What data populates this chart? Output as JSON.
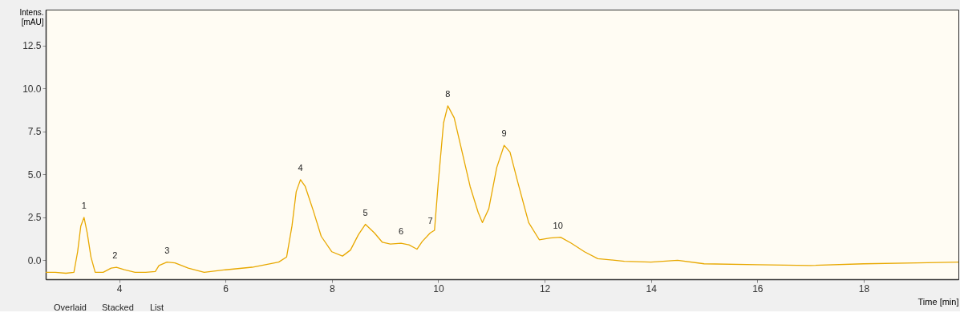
{
  "chart_data": {
    "type": "line",
    "xlabel": "Time [min]",
    "ylabel": "Intens. [mAU]",
    "x": [
      2.62,
      2.8,
      3.0,
      3.15,
      3.22,
      3.28,
      3.34,
      3.4,
      3.47,
      3.55,
      3.7,
      3.85,
      3.95,
      4.1,
      4.3,
      4.5,
      4.68,
      4.75,
      4.9,
      5.05,
      5.3,
      5.6,
      6.0,
      6.5,
      7.0,
      7.15,
      7.25,
      7.33,
      7.41,
      7.5,
      7.65,
      7.8,
      8.0,
      8.2,
      8.35,
      8.5,
      8.63,
      8.8,
      8.95,
      9.1,
      9.3,
      9.45,
      9.6,
      9.7,
      9.85,
      9.93,
      10.0,
      10.1,
      10.18,
      10.3,
      10.45,
      10.6,
      10.75,
      10.83,
      10.95,
      11.1,
      11.24,
      11.35,
      11.5,
      11.7,
      11.9,
      12.1,
      12.3,
      12.5,
      12.75,
      13.0,
      13.5,
      14.0,
      14.5,
      15.0,
      16.0,
      17.0,
      18.0,
      19.0,
      19.78
    ],
    "series": [
      {
        "color": "#e8a800",
        "values": [
          -0.7,
          -0.7,
          -0.75,
          -0.7,
          0.5,
          2.0,
          2.5,
          1.6,
          0.2,
          -0.7,
          -0.7,
          -0.45,
          -0.4,
          -0.55,
          -0.7,
          -0.7,
          -0.65,
          -0.3,
          -0.1,
          -0.15,
          -0.45,
          -0.7,
          -0.55,
          -0.4,
          -0.1,
          0.2,
          2.0,
          4.0,
          4.7,
          4.3,
          2.9,
          1.4,
          0.5,
          0.25,
          0.6,
          1.5,
          2.1,
          1.6,
          1.05,
          0.95,
          1.0,
          0.9,
          0.65,
          1.1,
          1.6,
          1.75,
          4.5,
          8.0,
          9.0,
          8.3,
          6.3,
          4.3,
          2.8,
          2.2,
          3.0,
          5.4,
          6.7,
          6.3,
          4.5,
          2.2,
          1.2,
          1.3,
          1.35,
          1.0,
          0.5,
          0.1,
          -0.05,
          -0.1,
          0.0,
          -0.2,
          -0.25,
          -0.3,
          -0.2,
          -0.15,
          -0.1
        ]
      }
    ],
    "xlim": [
      2.62,
      19.78
    ],
    "ylim": [
      -1.1,
      14.6
    ],
    "xticks": [
      4,
      6,
      8,
      10,
      12,
      14,
      16,
      18
    ],
    "yticks": [
      {
        "value": 0,
        "label": "0.0"
      },
      {
        "value": 2.5,
        "label": "2.5"
      },
      {
        "value": 5,
        "label": "5.0"
      },
      {
        "value": 7.5,
        "label": "7.5"
      },
      {
        "value": 10,
        "label": "10.0"
      },
      {
        "value": 12.5,
        "label": "12.5"
      }
    ],
    "grid": false,
    "legend": false,
    "annotations": [
      {
        "text": "1",
        "x": 3.34,
        "y": 2.5
      },
      {
        "text": "2",
        "x": 3.92,
        "y": -0.4
      },
      {
        "text": "3",
        "x": 4.9,
        "y": -0.1
      },
      {
        "text": "4",
        "x": 7.41,
        "y": 4.7
      },
      {
        "text": "5",
        "x": 8.63,
        "y": 2.1
      },
      {
        "text": "6",
        "x": 9.3,
        "y": 1.0
      },
      {
        "text": "7",
        "x": 9.85,
        "y": 1.6
      },
      {
        "text": "8",
        "x": 10.18,
        "y": 9.0
      },
      {
        "text": "9",
        "x": 11.24,
        "y": 6.7
      },
      {
        "text": "10",
        "x": 12.25,
        "y": 1.35
      },
      "Overlaid",
      "Stacked",
      "List"
    ]
  }
}
